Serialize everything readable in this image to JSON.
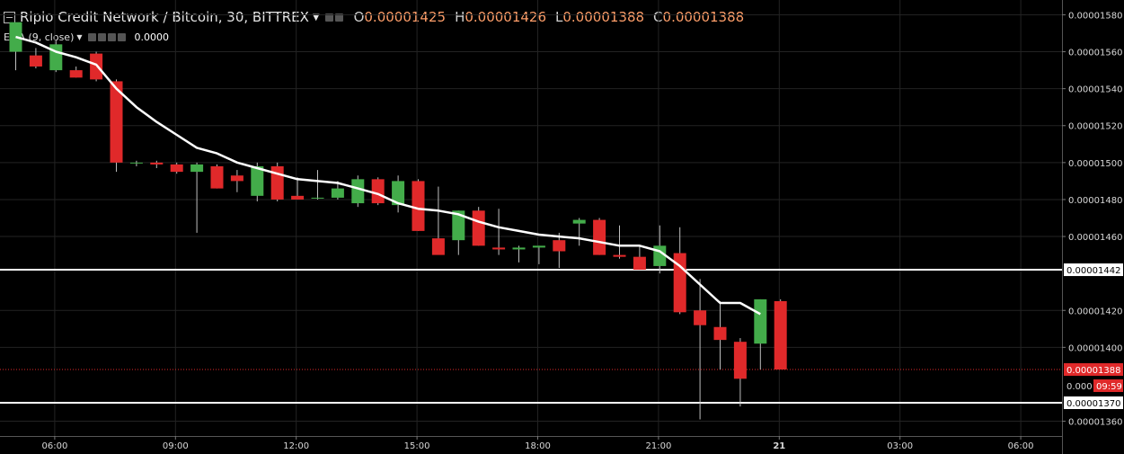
{
  "header": {
    "symbol": "Ripio Credit Network / Bitcoin, 30, BITTREX",
    "o_label": "O",
    "o_value": "0.00001425",
    "h_label": "H",
    "h_value": "0.00001426",
    "l_label": "L",
    "l_value": "0.00001388",
    "c_label": "C",
    "c_value": "0.00001388"
  },
  "indicator": {
    "label": "EMA (9, close)",
    "value": "0.0000"
  },
  "colors": {
    "up": "#43ac4a",
    "down": "#e0292a",
    "ema": "#ffffff",
    "background": "#000000",
    "price_tag": "#e0292a"
  },
  "chart_data": {
    "type": "candlestick",
    "y_range": [
      1.352e-05,
      1.588e-05
    ],
    "y_ticks": [
      "0.00001580",
      "0.00001560",
      "0.00001540",
      "0.00001520",
      "0.00001500",
      "0.00001480",
      "0.00001460",
      "0.00001420",
      "0.00001400",
      "0.00001360"
    ],
    "x_ticks": [
      {
        "index": 1,
        "label": "06:00"
      },
      {
        "index": 7,
        "label": "09:00"
      },
      {
        "index": 13,
        "label": "12:00"
      },
      {
        "index": 19,
        "label": "15:00"
      },
      {
        "index": 25,
        "label": "18:00"
      },
      {
        "index": 31,
        "label": "21:00"
      },
      {
        "index": 37,
        "label": "21"
      },
      {
        "index": 43,
        "label": "03:00"
      },
      {
        "index": 49,
        "label": "06:00"
      }
    ],
    "candles": [
      {
        "o": 1.56e-05,
        "h": 1.575e-05,
        "l": 1.55e-05,
        "c": 1.576e-05
      },
      {
        "o": 1.558e-05,
        "h": 1.562e-05,
        "l": 1.551e-05,
        "c": 1.552e-05
      },
      {
        "o": 1.55e-05,
        "h": 1.566e-05,
        "l": 1.549e-05,
        "c": 1.564e-05
      },
      {
        "o": 1.55e-05,
        "h": 1.552e-05,
        "l": 1.546e-05,
        "c": 1.546e-05
      },
      {
        "o": 1.559e-05,
        "h": 1.56e-05,
        "l": 1.544e-05,
        "c": 1.545e-05
      },
      {
        "o": 1.544e-05,
        "h": 1.545e-05,
        "l": 1.495e-05,
        "c": 1.5e-05
      },
      {
        "o": 1.5e-05,
        "h": 1.501e-05,
        "l": 1.498e-05,
        "c": 1.5e-05
      },
      {
        "o": 1.5e-05,
        "h": 1.501e-05,
        "l": 1.497e-05,
        "c": 1.499e-05
      },
      {
        "o": 1.499e-05,
        "h": 1.5e-05,
        "l": 1.494e-05,
        "c": 1.495e-05
      },
      {
        "o": 1.495e-05,
        "h": 1.5e-05,
        "l": 1.462e-05,
        "c": 1.499e-05
      },
      {
        "o": 1.498e-05,
        "h": 1.499e-05,
        "l": 1.486e-05,
        "c": 1.486e-05
      },
      {
        "o": 1.493e-05,
        "h": 1.496e-05,
        "l": 1.484e-05,
        "c": 1.49e-05
      },
      {
        "o": 1.482e-05,
        "h": 1.5e-05,
        "l": 1.479e-05,
        "c": 1.498e-05
      },
      {
        "o": 1.498e-05,
        "h": 1.5e-05,
        "l": 1.479e-05,
        "c": 1.48e-05
      },
      {
        "o": 1.482e-05,
        "h": 1.492e-05,
        "l": 1.48e-05,
        "c": 1.48e-05
      },
      {
        "o": 1.481e-05,
        "h": 1.496e-05,
        "l": 1.48e-05,
        "c": 1.481e-05
      },
      {
        "o": 1.481e-05,
        "h": 1.49e-05,
        "l": 1.48e-05,
        "c": 1.486e-05
      },
      {
        "o": 1.478e-05,
        "h": 1.493e-05,
        "l": 1.476e-05,
        "c": 1.491e-05
      },
      {
        "o": 1.491e-05,
        "h": 1.492e-05,
        "l": 1.477e-05,
        "c": 1.478e-05
      },
      {
        "o": 1.477e-05,
        "h": 1.493e-05,
        "l": 1.473e-05,
        "c": 1.49e-05
      },
      {
        "o": 1.49e-05,
        "h": 1.491e-05,
        "l": 1.463e-05,
        "c": 1.463e-05
      },
      {
        "o": 1.459e-05,
        "h": 1.487e-05,
        "l": 1.452e-05,
        "c": 1.45e-05
      },
      {
        "o": 1.458e-05,
        "h": 1.474e-05,
        "l": 1.45e-05,
        "c": 1.474e-05
      },
      {
        "o": 1.474e-05,
        "h": 1.476e-05,
        "l": 1.455e-05,
        "c": 1.455e-05
      },
      {
        "o": 1.454e-05,
        "h": 1.475e-05,
        "l": 1.45e-05,
        "c": 1.453e-05
      },
      {
        "o": 1.453e-05,
        "h": 1.455e-05,
        "l": 1.446e-05,
        "c": 1.454e-05
      },
      {
        "o": 1.454e-05,
        "h": 1.455e-05,
        "l": 1.445e-05,
        "c": 1.455e-05
      },
      {
        "o": 1.458e-05,
        "h": 1.462e-05,
        "l": 1.443e-05,
        "c": 1.452e-05
      },
      {
        "o": 1.467e-05,
        "h": 1.47e-05,
        "l": 1.455e-05,
        "c": 1.469e-05
      },
      {
        "o": 1.469e-05,
        "h": 1.47e-05,
        "l": 1.45e-05,
        "c": 1.45e-05
      },
      {
        "o": 1.45e-05,
        "h": 1.466e-05,
        "l": 1.448e-05,
        "c": 1.449e-05
      },
      {
        "o": 1.449e-05,
        "h": 1.455e-05,
        "l": 1.442e-05,
        "c": 1.442e-05
      },
      {
        "o": 1.444e-05,
        "h": 1.466e-05,
        "l": 1.44e-05,
        "c": 1.455e-05
      },
      {
        "o": 1.451e-05,
        "h": 1.465e-05,
        "l": 1.418e-05,
        "c": 1.419e-05
      },
      {
        "o": 1.42e-05,
        "h": 1.437e-05,
        "l": 1.361e-05,
        "c": 1.412e-05
      },
      {
        "o": 1.411e-05,
        "h": 1.425e-05,
        "l": 1.388e-05,
        "c": 1.404e-05
      },
      {
        "o": 1.403e-05,
        "h": 1.405e-05,
        "l": 1.368e-05,
        "c": 1.383e-05
      },
      {
        "o": 1.402e-05,
        "h": 1.426e-05,
        "l": 1.388e-05,
        "c": 1.426e-05
      },
      {
        "o": 1.425e-05,
        "h": 1.426e-05,
        "l": 1.388e-05,
        "c": 1.388e-05
      }
    ],
    "ema": [
      1.568e-05,
      1.565e-05,
      1.56e-05,
      1.557e-05,
      1.553e-05,
      1.54e-05,
      1.53e-05,
      1.522e-05,
      1.515e-05,
      1.508e-05,
      1.505e-05,
      1.5e-05,
      1.497e-05,
      1.494e-05,
      1.491e-05,
      1.49e-05,
      1.489e-05,
      1.486e-05,
      1.483e-05,
      1.478e-05,
      1.475e-05,
      1.474e-05,
      1.472e-05,
      1.468e-05,
      1.465e-05,
      1.463e-05,
      1.461e-05,
      1.46e-05,
      1.459e-05,
      1.457e-05,
      1.455e-05,
      1.455e-05,
      1.452e-05,
      1.444e-05,
      1.434e-05,
      1.424e-05,
      1.424e-05,
      1.418e-05,
      null
    ],
    "horizontal_lines": [
      {
        "value": 1.442e-05,
        "label": "0.00001442",
        "style": "white"
      },
      {
        "value": 1.37e-05,
        "label": "0.00001370",
        "style": "white"
      }
    ],
    "last_price": {
      "value": 1.388e-05,
      "label": "0.00001388",
      "countdown_prefix": "0.000",
      "countdown": "09:59"
    }
  }
}
